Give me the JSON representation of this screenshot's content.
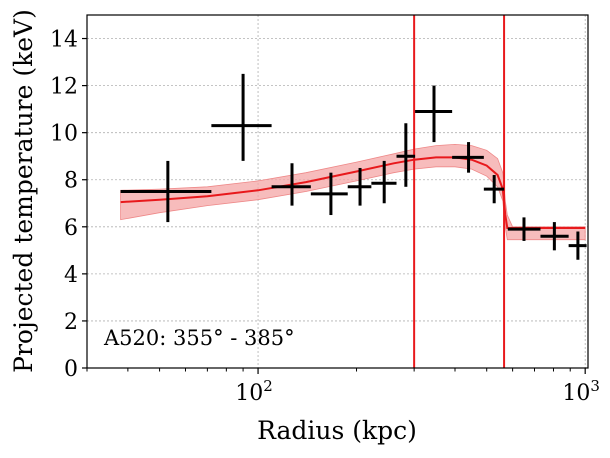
{
  "chart_data": {
    "type": "scatter",
    "xlabel": "Radius (kpc)",
    "ylabel": "Projected temperature (keV)",
    "xscale": "log",
    "xlim": [
      30,
      1020
    ],
    "ylim": [
      0,
      15
    ],
    "grid": true,
    "yticks": [
      0,
      2,
      4,
      6,
      8,
      10,
      12,
      14
    ],
    "xticks": [
      {
        "value": 100,
        "base": "10",
        "exp": "2"
      },
      {
        "value": 1000,
        "base": "10",
        "exp": "3"
      }
    ],
    "annotation": "A520: 355° - 385°",
    "colors": {
      "data": "#000000",
      "model": "#e8191c",
      "band": "#f4a5a5"
    },
    "data_points": [
      {
        "x": 53,
        "xlo": 38,
        "xhi": 72,
        "y": 7.5,
        "ylo": 6.2,
        "yhi": 8.8
      },
      {
        "x": 90,
        "xlo": 72,
        "xhi": 110,
        "y": 10.3,
        "ylo": 8.8,
        "yhi": 12.5
      },
      {
        "x": 127,
        "xlo": 110,
        "xhi": 145,
        "y": 7.7,
        "ylo": 6.9,
        "yhi": 8.7
      },
      {
        "x": 167,
        "xlo": 145,
        "xhi": 188,
        "y": 7.4,
        "ylo": 6.5,
        "yhi": 8.3
      },
      {
        "x": 205,
        "xlo": 188,
        "xhi": 222,
        "y": 7.7,
        "ylo": 6.9,
        "yhi": 8.5
      },
      {
        "x": 243,
        "xlo": 222,
        "xhi": 265,
        "y": 7.85,
        "ylo": 7.0,
        "yhi": 8.8
      },
      {
        "x": 283,
        "xlo": 265,
        "xhi": 302,
        "y": 9.0,
        "ylo": 7.7,
        "yhi": 10.4
      },
      {
        "x": 345,
        "xlo": 302,
        "xhi": 392,
        "y": 10.9,
        "ylo": 9.6,
        "yhi": 12.0
      },
      {
        "x": 440,
        "xlo": 392,
        "xhi": 490,
        "y": 8.95,
        "ylo": 8.3,
        "yhi": 9.6
      },
      {
        "x": 527,
        "xlo": 490,
        "xhi": 565,
        "y": 7.6,
        "ylo": 7.0,
        "yhi": 8.2
      },
      {
        "x": 650,
        "xlo": 580,
        "xhi": 730,
        "y": 5.9,
        "ylo": 5.4,
        "yhi": 6.4
      },
      {
        "x": 805,
        "xlo": 730,
        "xhi": 890,
        "y": 5.6,
        "ylo": 5.0,
        "yhi": 6.2
      },
      {
        "x": 950,
        "xlo": 890,
        "xhi": 1010,
        "y": 5.2,
        "ylo": 4.6,
        "yhi": 5.8
      }
    ],
    "model_curve": [
      {
        "x": 38,
        "y": 7.05,
        "lo": 6.3,
        "hi": 7.55
      },
      {
        "x": 50,
        "y": 7.15,
        "lo": 6.6,
        "hi": 7.6
      },
      {
        "x": 70,
        "y": 7.3,
        "lo": 6.9,
        "hi": 7.7
      },
      {
        "x": 100,
        "y": 7.55,
        "lo": 7.15,
        "hi": 7.95
      },
      {
        "x": 140,
        "y": 7.9,
        "lo": 7.5,
        "hi": 8.3
      },
      {
        "x": 200,
        "y": 8.35,
        "lo": 7.95,
        "hi": 8.75
      },
      {
        "x": 260,
        "y": 8.7,
        "lo": 8.3,
        "hi": 9.1
      },
      {
        "x": 300,
        "y": 8.85,
        "lo": 8.45,
        "hi": 9.3
      },
      {
        "x": 350,
        "y": 8.95,
        "lo": 8.55,
        "hi": 9.45
      },
      {
        "x": 400,
        "y": 8.95,
        "lo": 8.55,
        "hi": 9.5
      },
      {
        "x": 450,
        "y": 8.85,
        "lo": 8.45,
        "hi": 9.45
      },
      {
        "x": 500,
        "y": 8.6,
        "lo": 8.15,
        "hi": 9.25
      },
      {
        "x": 540,
        "y": 8.2,
        "lo": 7.7,
        "hi": 8.9
      },
      {
        "x": 560,
        "y": 7.6,
        "lo": 7.1,
        "hi": 8.3
      },
      {
        "x": 570,
        "y": 6.5,
        "lo": 6.0,
        "hi": 7.1
      },
      {
        "x": 578,
        "y": 5.95,
        "lo": 5.45,
        "hi": 6.5
      },
      {
        "x": 600,
        "y": 5.95,
        "lo": 5.45,
        "hi": 6.0
      },
      {
        "x": 1000,
        "y": 5.95,
        "lo": 5.45,
        "hi": 6.0
      }
    ],
    "vertical_lines": [
      300,
      565
    ]
  }
}
